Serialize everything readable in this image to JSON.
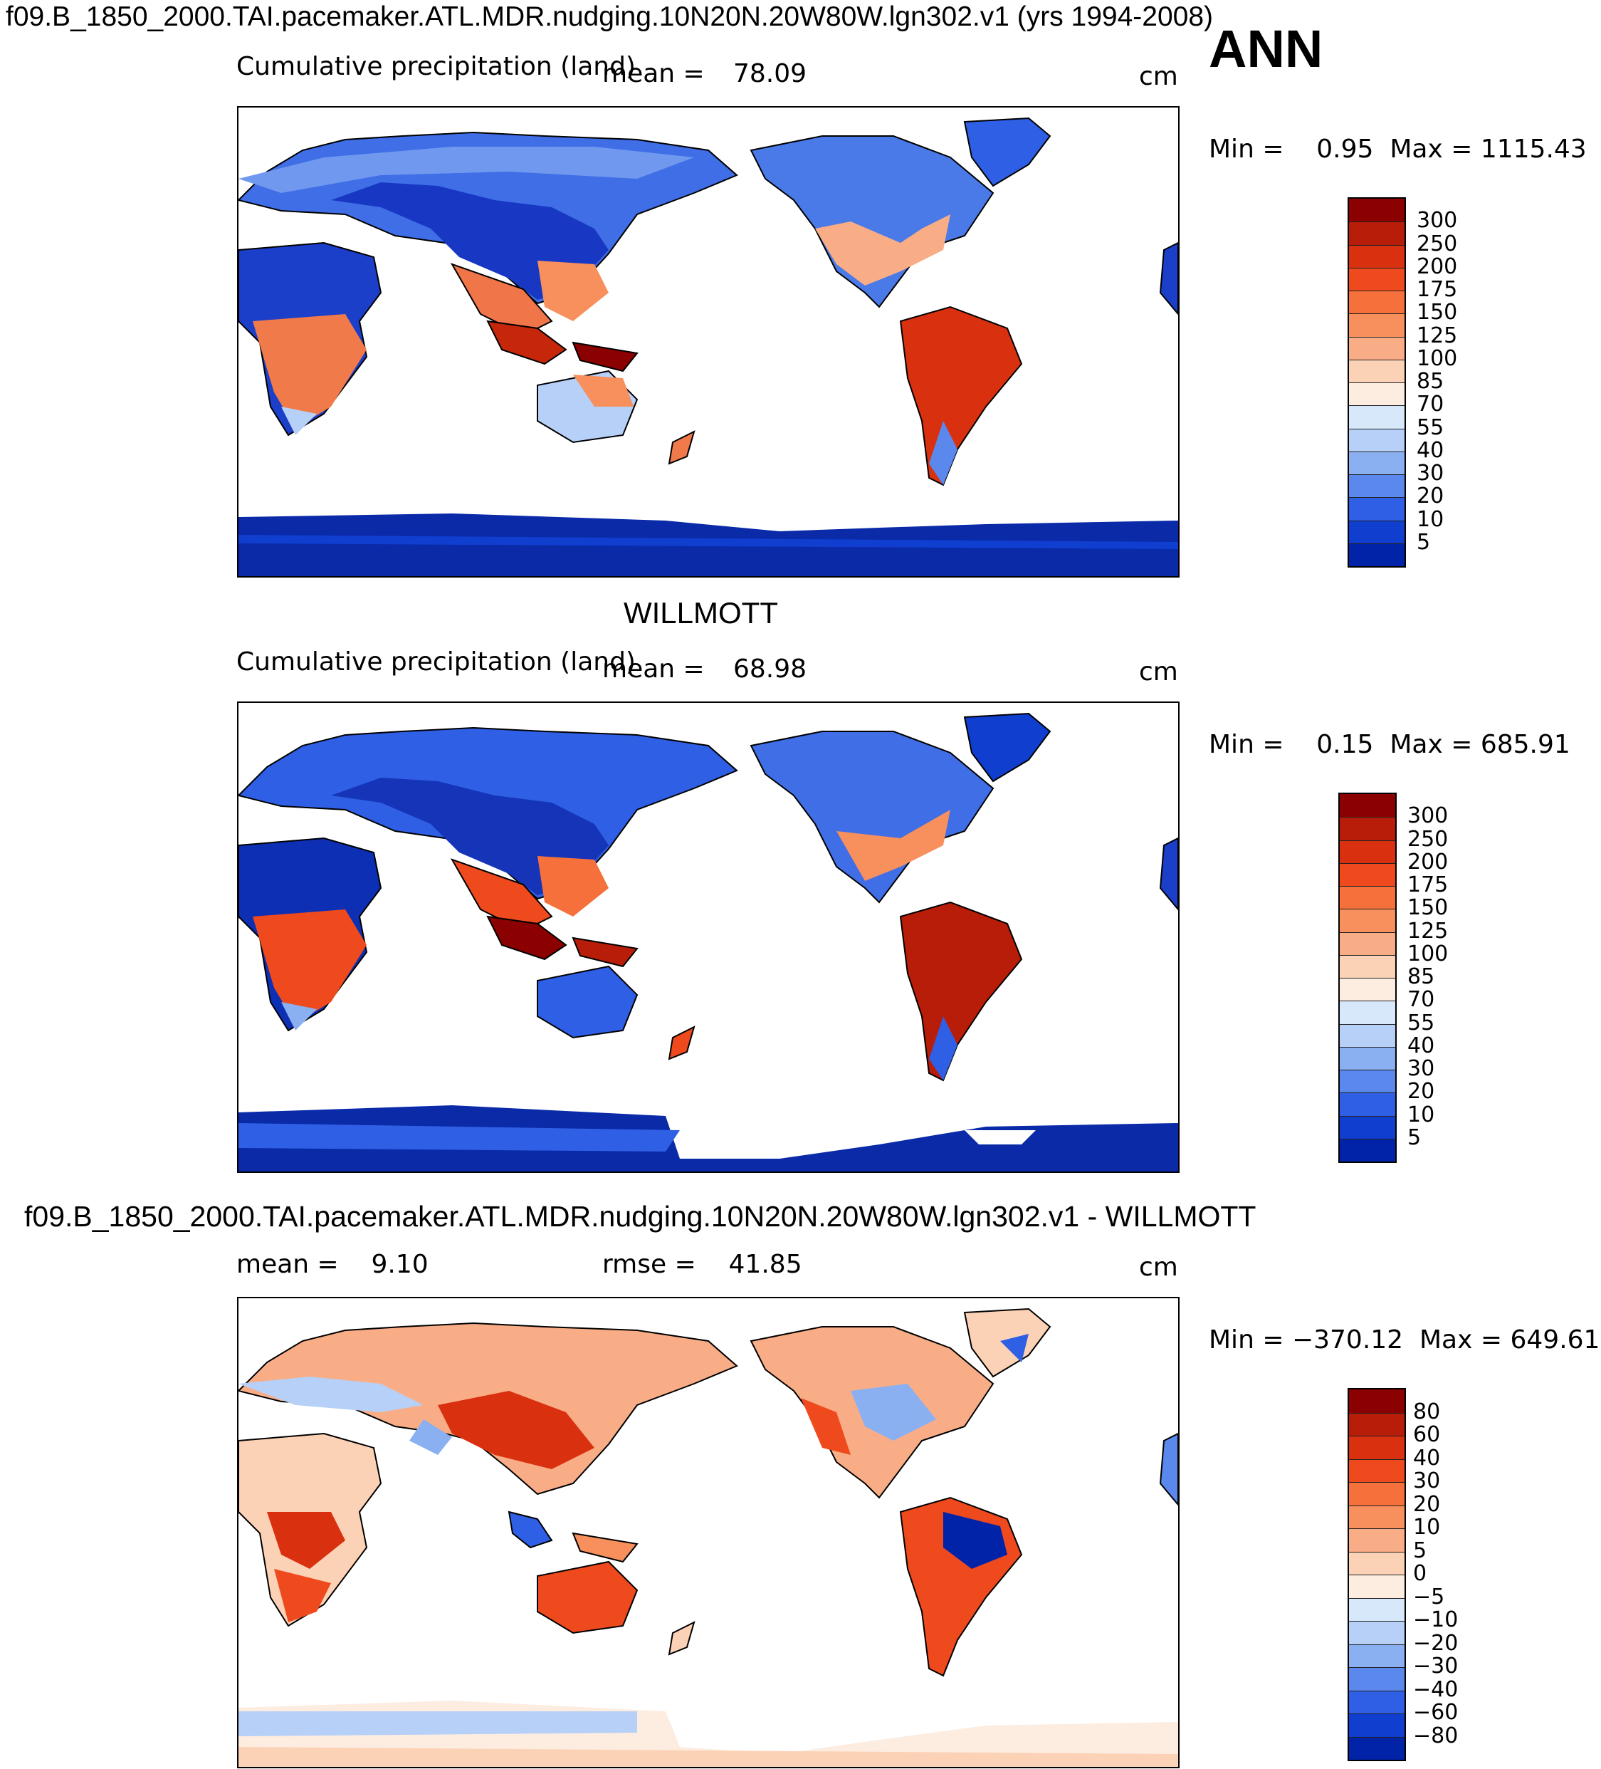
{
  "figure": {
    "main_title": "f09.B_1850_2000.TAI.pacemaker.ATL.MDR.nudging.10N20N.20W80W.lgn302.v1 (yrs 1994-2008)",
    "season": "ANN"
  },
  "panels": [
    {
      "title": "",
      "left_label": "Cumulative precipitation (land)",
      "stat_label": "mean",
      "stat_value": "78.09",
      "units": "cm",
      "minmax": {
        "min_label": "Min",
        "min": "0.95",
        "max_label": "Max",
        "max": "1115.43"
      },
      "colorbar": {
        "labels": [
          "300",
          "250",
          "200",
          "175",
          "150",
          "125",
          "100",
          "85",
          "70",
          "55",
          "40",
          "30",
          "20",
          "10",
          "5"
        ],
        "colors": [
          "#8b0000",
          "#b81d09",
          "#d93110",
          "#ee4a1e",
          "#f5703a",
          "#f7905c",
          "#f9ad86",
          "#fcd2b6",
          "#fdece0",
          "#d8e8fb",
          "#b6d0f8",
          "#8bb0f2",
          "#5a88ec",
          "#2f5fe4",
          "#103ecf",
          "#0023a8"
        ]
      }
    },
    {
      "title": "WILLMOTT",
      "left_label": "Cumulative precipitation (land)",
      "stat_label": "mean",
      "stat_value": "68.98",
      "units": "cm",
      "minmax": {
        "min_label": "Min",
        "min": "0.15",
        "max_label": "Max",
        "max": "685.91"
      },
      "colorbar": {
        "labels": [
          "300",
          "250",
          "200",
          "175",
          "150",
          "125",
          "100",
          "85",
          "70",
          "55",
          "40",
          "30",
          "20",
          "10",
          "5"
        ],
        "colors": [
          "#8b0000",
          "#b81d09",
          "#d93110",
          "#ee4a1e",
          "#f5703a",
          "#f7905c",
          "#f9ad86",
          "#fcd2b6",
          "#fdece0",
          "#d8e8fb",
          "#b6d0f8",
          "#8bb0f2",
          "#5a88ec",
          "#2f5fe4",
          "#103ecf",
          "#0023a8"
        ]
      }
    },
    {
      "title": "f09.B_1850_2000.TAI.pacemaker.ATL.MDR.nudging.10N20N.20W80W.lgn302.v1 - WILLMOTT",
      "left_label": "mean",
      "left_value": "9.10",
      "stat_label": "rmse",
      "stat_value": "41.85",
      "units": "cm",
      "minmax": {
        "min_label": "Min",
        "min": "−370.12",
        "max_label": "Max",
        "max": "649.61"
      },
      "colorbar": {
        "labels": [
          "80",
          "60",
          "40",
          "30",
          "20",
          "10",
          "5",
          "0",
          "−5",
          "−10",
          "−20",
          "−30",
          "−40",
          "−60",
          "−80"
        ],
        "colors": [
          "#8b0000",
          "#b81d09",
          "#d93110",
          "#ee4a1e",
          "#f5703a",
          "#f7905c",
          "#f9ad86",
          "#fcd2b6",
          "#fdece0",
          "#d8e8fb",
          "#b6d0f8",
          "#8bb0f2",
          "#5a88ec",
          "#2f5fe4",
          "#103ecf",
          "#0023a8"
        ]
      }
    }
  ]
}
